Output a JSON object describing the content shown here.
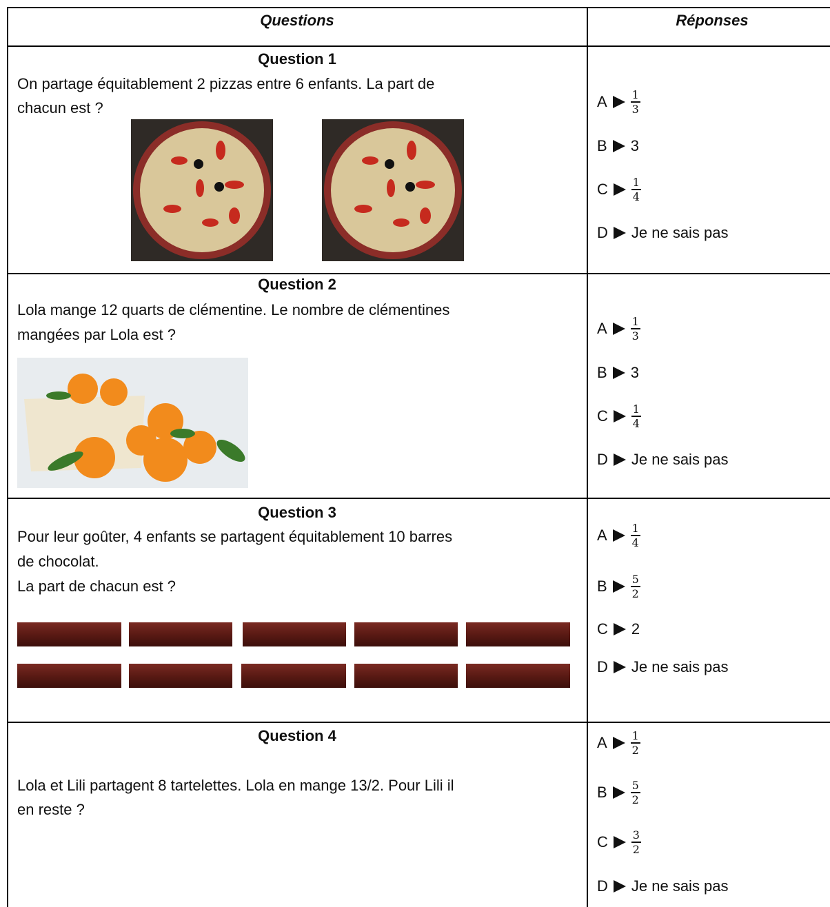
{
  "header": {
    "questions": "Questions",
    "answers": "Réponses"
  },
  "rows": [
    {
      "title": "Question 1",
      "lines": [
        "On partage équitablement 2 pizzas entre 6 enfants. La part de",
        "chacun est ?"
      ],
      "answers": [
        {
          "letter": "A",
          "numerator": "1",
          "denominator": "3"
        },
        {
          "letter": "B",
          "text": "3"
        },
        {
          "letter": "C",
          "numerator": "1",
          "denominator": "4"
        },
        {
          "letter": "D",
          "text": "Je ne sais pas"
        }
      ]
    },
    {
      "title": "Question 2",
      "lines": [
        "Lola mange 12 quarts de clémentine. Le nombre de clémentines",
        "mangées par Lola est ?"
      ],
      "answers": [
        {
          "letter": "A",
          "numerator": "1",
          "denominator": "3"
        },
        {
          "letter": "B",
          "text": "3"
        },
        {
          "letter": "C",
          "numerator": "1",
          "denominator": "4"
        },
        {
          "letter": "D",
          "text": "Je ne sais pas"
        }
      ]
    },
    {
      "title": "Question 3",
      "lines": [
        "Pour leur goûter, 4 enfants se partagent équitablement 10 barres",
        "de chocolat.",
        "La part de chacun est ?"
      ],
      "answers": [
        {
          "letter": "A",
          "numerator": "1",
          "denominator": "4"
        },
        {
          "letter": "B",
          "numerator": "5",
          "denominator": "2"
        },
        {
          "letter": "C",
          "text": "2"
        },
        {
          "letter": "D",
          "text": "Je ne sais pas"
        }
      ]
    },
    {
      "title": "Question 4",
      "lines": [
        "Lola et Lili partagent 8 tartelettes. Lola en mange 13/2. Pour Lili il",
        "en reste ?"
      ],
      "answers": [
        {
          "letter": "A",
          "numerator": "1",
          "denominator": "2"
        },
        {
          "letter": "B",
          "numerator": "5",
          "denominator": "2"
        },
        {
          "letter": "C",
          "numerator": "3",
          "denominator": "2"
        },
        {
          "letter": "D",
          "text": "Je ne sais pas"
        }
      ]
    }
  ]
}
